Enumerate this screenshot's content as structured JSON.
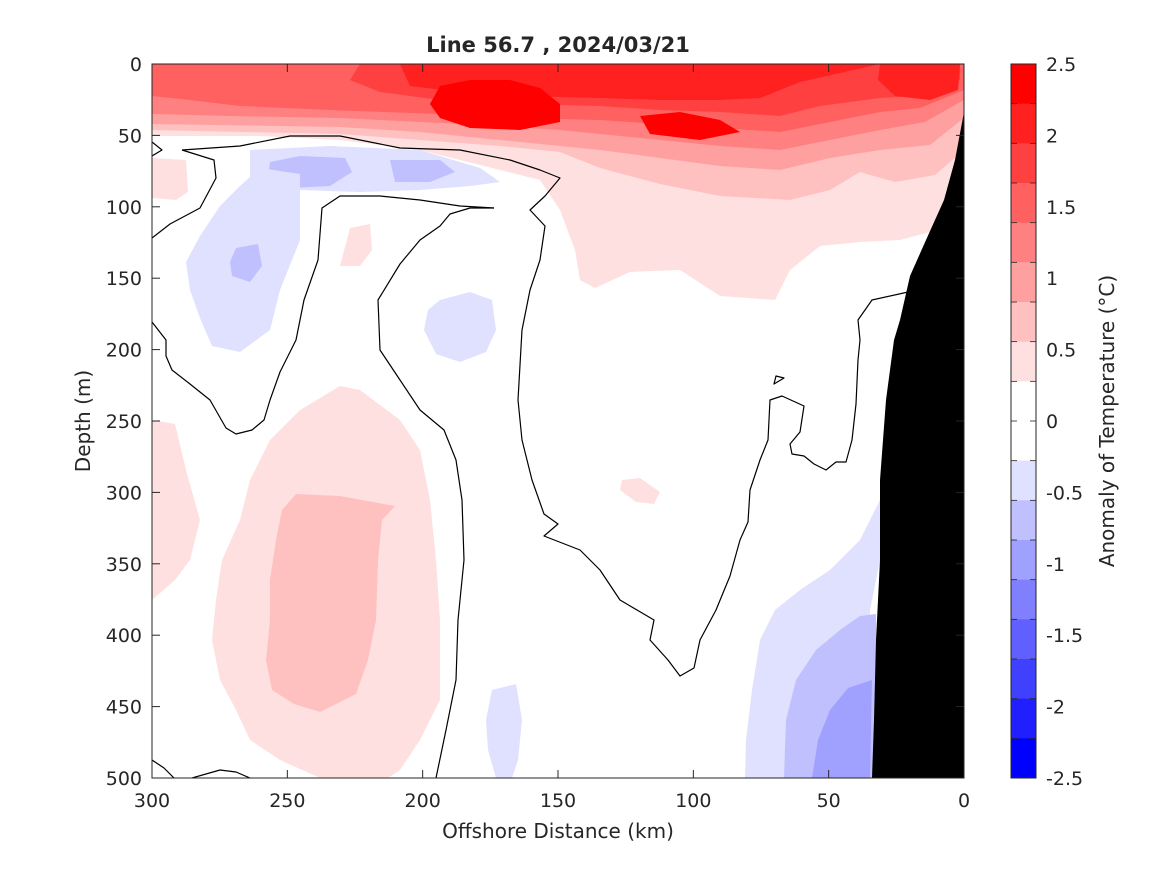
{
  "chart_data": {
    "type": "heatmap",
    "title": "Line 56.7 , 2024/03/21",
    "xlabel": "Offshore Distance (km)",
    "ylabel": "Depth (m)",
    "xlim": [
      300,
      0
    ],
    "ylim": [
      0,
      500
    ],
    "x_reversed": true,
    "y_reversed": true,
    "x_ticks": [
      300,
      250,
      200,
      150,
      100,
      50,
      0
    ],
    "y_ticks": [
      0,
      50,
      100,
      150,
      200,
      250,
      300,
      350,
      400,
      450,
      500
    ],
    "x_tick_labels": [
      "300",
      "250",
      "200",
      "150",
      "100",
      "50",
      "0"
    ],
    "y_tick_labels": [
      "0",
      "50",
      "100",
      "150",
      "200",
      "250",
      "300",
      "350",
      "400",
      "450",
      "500"
    ],
    "zero_contour": "black line",
    "bathymetry_fill": "#000000",
    "colorbar": {
      "label": "Anomaly of Temperature (°C)",
      "range": [
        -2.5,
        2.5
      ],
      "level_step": 0.25,
      "tick_values": [
        2.5,
        2,
        1.5,
        1,
        0.5,
        0,
        -0.5,
        -1,
        -1.5,
        -2,
        -2.5
      ],
      "tick_labels": [
        "2.5",
        "2",
        "1.5",
        "1",
        "0.5",
        "0",
        "-0.5",
        "-1",
        "-1.5",
        "-2",
        "-2.5"
      ],
      "colors_top_to_bottom": [
        "#ff0000",
        "#ff2020",
        "#ff4040",
        "#ff6060",
        "#ff8080",
        "#ffa0a0",
        "#ffc0c0",
        "#ffe0e0",
        "#ffffff",
        "#ffffff",
        "#e0e0ff",
        "#c0c0ff",
        "#a0a0ff",
        "#8080ff",
        "#6060ff",
        "#4040ff",
        "#2020ff",
        "#0000ff"
      ]
    },
    "regions": [
      {
        "name": "surface-warm",
        "anomaly_range": [
          0.5,
          2.5
        ],
        "x_range": [
          300,
          0
        ],
        "depth_range": [
          0,
          100
        ]
      },
      {
        "name": "surface-core",
        "anomaly_range": [
          2.25,
          2.5
        ],
        "x_range": [
          195,
          90
        ],
        "depth_range": [
          15,
          55
        ]
      },
      {
        "name": "shallow-cool-patch",
        "anomaly": -0.5,
        "x_range": [
          270,
          160
        ],
        "depth_range": [
          55,
          90
        ]
      },
      {
        "name": "west-cool-tongue",
        "anomaly": -0.5,
        "x_range": [
          285,
          230
        ],
        "depth_range": [
          80,
          200
        ]
      },
      {
        "name": "mid-cool-patch",
        "anomaly": -0.5,
        "x_range": [
          185,
          160
        ],
        "depth_range": [
          160,
          215
        ]
      },
      {
        "name": "deep-warm-column",
        "anomaly_range": [
          0.25,
          0.75
        ],
        "x_range": [
          275,
          180
        ],
        "depth_range": [
          240,
          500
        ]
      },
      {
        "name": "nearshore-deep-cool",
        "anomaly_range": [
          -1.0,
          -0.25
        ],
        "x_range": [
          80,
          32
        ],
        "depth_range": [
          290,
          500
        ]
      }
    ]
  }
}
